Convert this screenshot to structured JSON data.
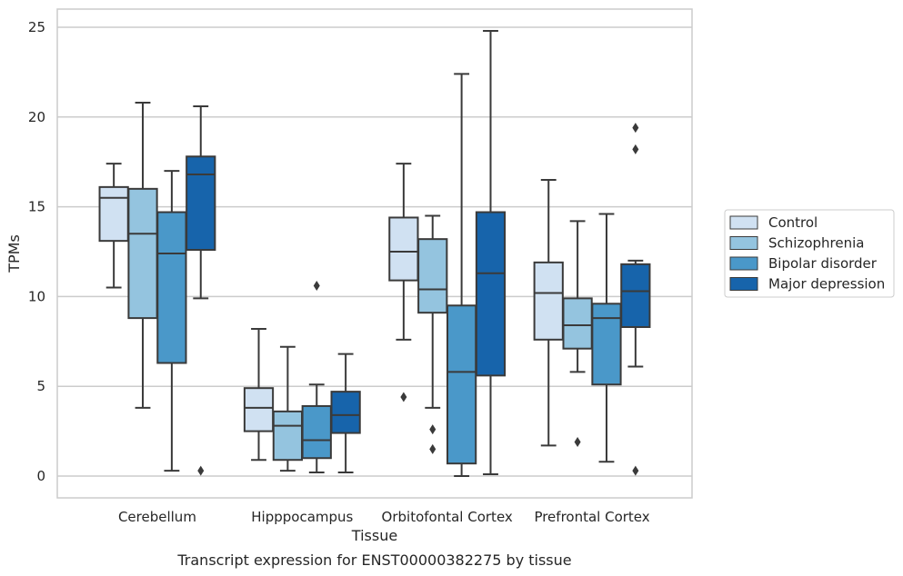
{
  "chart_data": {
    "type": "box",
    "xlabel": "Tissue",
    "ylabel": "TPMs",
    "caption": "Transcript expression for ENST00000382275 by tissue",
    "ylim": [
      -1.2,
      26
    ],
    "yticks": [
      0,
      5,
      10,
      15,
      20,
      25
    ],
    "grid": "horizontal",
    "legend_position": "right",
    "categories": [
      "Cerebellum",
      "Hipppocampus",
      "Orbitofontal Cortex",
      "Prefrontal Cortex"
    ],
    "series": [
      {
        "name": "Control",
        "color": "#d0e1f2",
        "boxes": [
          {
            "whislo": 10.5,
            "q1": 13.1,
            "med": 15.5,
            "q3": 16.1,
            "whishi": 17.4,
            "fliers": []
          },
          {
            "whislo": 0.9,
            "q1": 2.5,
            "med": 3.8,
            "q3": 4.9,
            "whishi": 8.2,
            "fliers": []
          },
          {
            "whislo": 7.6,
            "q1": 10.9,
            "med": 12.5,
            "q3": 14.4,
            "whishi": 17.4,
            "fliers": [
              4.4
            ]
          },
          {
            "whislo": 1.7,
            "q1": 7.6,
            "med": 10.2,
            "q3": 11.9,
            "whishi": 16.5,
            "fliers": []
          }
        ]
      },
      {
        "name": "Schizophrenia",
        "color": "#94c4df",
        "boxes": [
          {
            "whislo": 3.8,
            "q1": 8.8,
            "med": 13.5,
            "q3": 16.0,
            "whishi": 20.8,
            "fliers": []
          },
          {
            "whislo": 0.3,
            "q1": 0.9,
            "med": 2.8,
            "q3": 3.6,
            "whishi": 7.2,
            "fliers": []
          },
          {
            "whislo": 3.8,
            "q1": 9.1,
            "med": 10.4,
            "q3": 13.2,
            "whishi": 14.5,
            "fliers": [
              2.6,
              1.5
            ]
          },
          {
            "whislo": 5.8,
            "q1": 7.1,
            "med": 8.4,
            "q3": 9.9,
            "whishi": 14.2,
            "fliers": [
              1.9
            ]
          }
        ]
      },
      {
        "name": "Bipolar disorder",
        "color": "#4a98c9",
        "boxes": [
          {
            "whislo": 0.3,
            "q1": 6.3,
            "med": 12.4,
            "q3": 14.7,
            "whishi": 17.0,
            "fliers": []
          },
          {
            "whislo": 0.2,
            "q1": 1.0,
            "med": 2.0,
            "q3": 3.9,
            "whishi": 5.1,
            "fliers": [
              10.6
            ]
          },
          {
            "whislo": 0.0,
            "q1": 0.7,
            "med": 5.8,
            "q3": 9.5,
            "whishi": 22.4,
            "fliers": []
          },
          {
            "whislo": 0.8,
            "q1": 5.1,
            "med": 8.8,
            "q3": 9.6,
            "whishi": 14.6,
            "fliers": []
          }
        ]
      },
      {
        "name": "Major depression",
        "color": "#1764ab",
        "boxes": [
          {
            "whislo": 9.9,
            "q1": 12.6,
            "med": 16.8,
            "q3": 17.8,
            "whishi": 20.6,
            "fliers": [
              0.3
            ]
          },
          {
            "whislo": 0.2,
            "q1": 2.4,
            "med": 3.4,
            "q3": 4.7,
            "whishi": 6.8,
            "fliers": []
          },
          {
            "whislo": 0.1,
            "q1": 5.6,
            "med": 11.3,
            "q3": 14.7,
            "whishi": 24.8,
            "fliers": []
          },
          {
            "whislo": 6.1,
            "q1": 8.3,
            "med": 10.3,
            "q3": 11.8,
            "whishi": 12.0,
            "fliers": [
              19.4,
              18.2,
              0.3
            ]
          }
        ]
      }
    ]
  }
}
